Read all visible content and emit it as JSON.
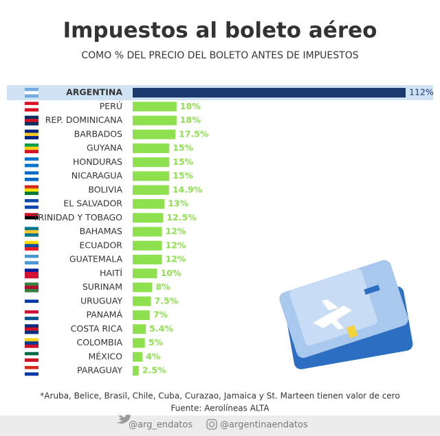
{
  "chart_data": {
    "type": "bar",
    "orientation": "horizontal",
    "title": "Impuestos al boleto aéreo",
    "subtitle": "COMO % DEL PRECIO DEL BOLETO ANTES DE IMPUESTOS",
    "categories": [
      "ARGENTINA",
      "PERÚ",
      "REP. DOMINICANA",
      "BARBADOS",
      "GUYANA",
      "HONDURAS",
      "NICARAGUA",
      "BOLIVIA",
      "EL SALVADOR",
      "TRINIDAD Y TOBAGO",
      "BAHAMAS",
      "ECUADOR",
      "GUATEMALA",
      "HAITÍ",
      "SURINAM",
      "URUGUAY",
      "PANAMÁ",
      "COSTA RICA",
      "COLOMBIA",
      "MÉXICO",
      "PARAGUAY"
    ],
    "values": [
      112,
      18,
      18,
      17.5,
      15,
      15,
      15,
      14.9,
      13,
      12.5,
      12,
      12,
      12,
      10,
      8,
      7.5,
      7,
      5.4,
      5,
      4,
      2.5
    ],
    "value_labels": [
      "112%",
      "18%",
      "18%",
      "17.5%",
      "15%",
      "15%",
      "15%",
      "14.9%",
      "13%",
      "12.5%",
      "12%",
      "12%",
      "12%",
      "10%",
      "8%",
      "7.5%",
      "7%",
      "5.4%",
      "5%",
      "4%",
      "2.5%"
    ],
    "colors": [
      "#1d3a6e",
      "#8ee04f",
      "#8ee04f",
      "#8ee04f",
      "#8ee04f",
      "#8ee04f",
      "#8ee04f",
      "#8ee04f",
      "#8ee04f",
      "#8ee04f",
      "#8ee04f",
      "#8ee04f",
      "#8ee04f",
      "#8ee04f",
      "#8ee04f",
      "#8ee04f",
      "#8ee04f",
      "#8ee04f",
      "#8ee04f",
      "#8ee04f",
      "#8ee04f"
    ],
    "footnote": "*Aruba, Belice, Brasil, Chile, Cuba, Curazao, Jamaica y St. Marteen tienen valor de cero",
    "source": "Fuente: Aerolíneas ALTA",
    "social": [
      "@arg_endatos",
      "@argentinaendatos"
    ]
  }
}
